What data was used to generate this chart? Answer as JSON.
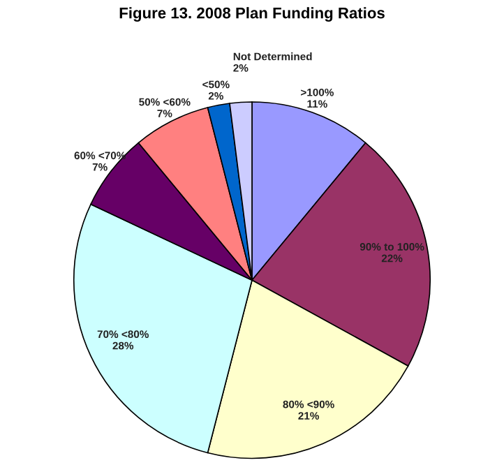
{
  "chart_data": {
    "type": "pie",
    "title": "Figure 13. 2008 Plan Funding Ratios",
    "categories": [
      ">100%",
      "90% to 100%",
      "80% <90%",
      "70% <80%",
      "60% <70%",
      "50% <60%",
      "<50%",
      "Not Determined"
    ],
    "values": [
      11,
      22,
      21,
      28,
      7,
      7,
      2,
      2
    ],
    "colors": [
      "#9999ff",
      "#993366",
      "#ffffcc",
      "#ccffff",
      "#660066",
      "#ff8080",
      "#0066cc",
      "#ccccff"
    ],
    "value_labels": [
      "11%",
      "22%",
      "21%",
      "28%",
      "7%",
      "7%",
      "2%",
      "2%"
    ]
  }
}
